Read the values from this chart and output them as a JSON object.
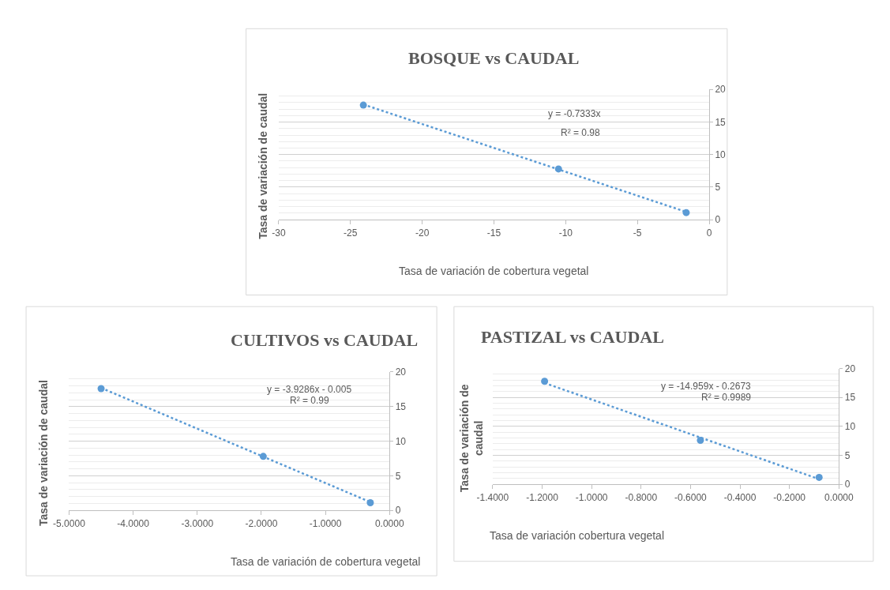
{
  "chart_data": [
    {
      "type": "scatter",
      "title": "BOSQUE vs CAUDAL",
      "xlabel": "Tasa de variación de cobertura vegetal",
      "ylabel": "Tasa de variación de caudal",
      "series": [
        {
          "color": "#5b9bd5",
          "x": [
            -24.1,
            -10.5,
            -1.6
          ],
          "values": [
            17.6,
            7.8,
            1.1
          ],
          "marker": "circle"
        },
        {
          "type": "line",
          "color": "#5b9bd5",
          "x": [
            -24.1,
            -1.6
          ],
          "values": [
            17.7,
            1.2
          ],
          "line_style": "dotted",
          "marker": "none"
        }
      ],
      "annotations": [
        "y = -0.7333x",
        "R² = 0.98"
      ],
      "xlim": [
        -30,
        0
      ],
      "xticks": [
        -30,
        -25,
        -20,
        -15,
        -10,
        -5,
        0
      ],
      "ylim": [
        0,
        20
      ],
      "yticks": [
        0,
        5,
        10,
        15,
        20
      ],
      "grid": "y"
    },
    {
      "type": "scatter",
      "title": "CULTIVOS vs CAUDAL",
      "xlabel": "Tasa de variación de cobertura vegetal",
      "ylabel": "Tasa de variación de caudal",
      "series": [
        {
          "color": "#5b9bd5",
          "x": [
            -4.5,
            -1.97,
            -0.3
          ],
          "values": [
            17.6,
            7.8,
            1.1
          ],
          "marker": "circle"
        },
        {
          "type": "line",
          "color": "#5b9bd5",
          "x": [
            -4.5,
            -0.3
          ],
          "values": [
            17.7,
            1.2
          ],
          "line_style": "dotted",
          "marker": "none"
        }
      ],
      "annotations": [
        "y = -3.9286x - 0.005",
        "R² = 0.99"
      ],
      "xlim": [
        -5,
        0
      ],
      "xticks": [
        {
          "value": -5,
          "label": "-5.0000"
        },
        {
          "value": -4,
          "label": "-4.0000"
        },
        {
          "value": -3,
          "label": "-3.0000"
        },
        {
          "value": -2,
          "label": "-2.0000"
        },
        {
          "value": -1,
          "label": "-1.0000"
        },
        {
          "value": 0,
          "label": "0.0000"
        }
      ],
      "ylim": [
        0,
        20
      ],
      "yticks": [
        0,
        5,
        10,
        15,
        20
      ],
      "grid": "y"
    },
    {
      "type": "scatter",
      "title": "PASTIZAL vs CAUDAL",
      "xlabel": "Tasa de variación cobertura vegetal",
      "ylabel": "Tasa de variación de\ncaudal",
      "series": [
        {
          "color": "#5b9bd5",
          "x": [
            -1.19,
            -0.56,
            -0.08
          ],
          "values": [
            17.8,
            7.6,
            1.2
          ],
          "marker": "circle"
        },
        {
          "type": "line",
          "color": "#5b9bd5",
          "x": [
            -1.19,
            -0.08
          ],
          "values": [
            17.5,
            0.9
          ],
          "line_style": "dotted",
          "marker": "none"
        }
      ],
      "annotations": [
        "y = -14.959x - 0.2673",
        "R² = 0.9989"
      ],
      "xlim": [
        -1.4,
        0
      ],
      "xticks": [
        {
          "value": -1.4,
          "label": "-1.4000"
        },
        {
          "value": -1.2,
          "label": "-1.2000"
        },
        {
          "value": -1.0,
          "label": "-1.0000"
        },
        {
          "value": -0.8,
          "label": "-0.8000"
        },
        {
          "value": -0.6,
          "label": "-0.6000"
        },
        {
          "value": -0.4,
          "label": "-0.4000"
        },
        {
          "value": -0.2,
          "label": "-0.2000"
        },
        {
          "value": 0,
          "label": "0.0000"
        }
      ],
      "ylim": [
        0,
        20
      ],
      "yticks": [
        0,
        5,
        10,
        15,
        20
      ],
      "grid": "y"
    }
  ]
}
